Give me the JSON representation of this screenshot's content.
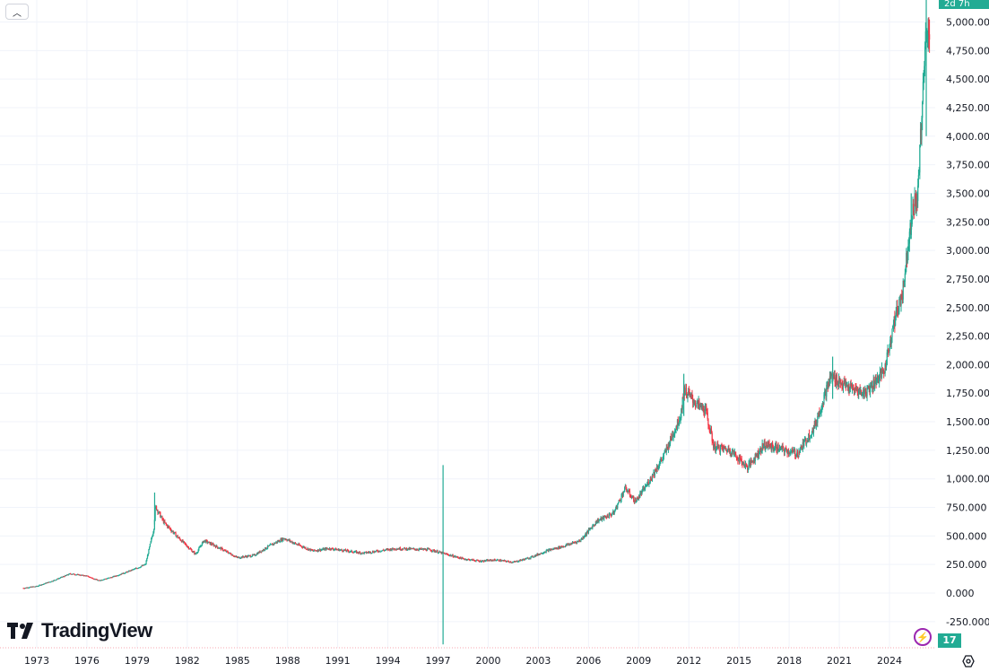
{
  "ui": {
    "countdown_label": "2d 7h",
    "bottom_badge_label": "17",
    "logo_text": "TradingView",
    "collapse_icon": "chevron-up-icon",
    "bolt_icon": "lightning-icon",
    "settings_icon": "gear-icon"
  },
  "colors": {
    "up": "#22ab94",
    "down": "#f23645",
    "grid": "#f0f3fa",
    "text": "#131722"
  },
  "chart_data": {
    "type": "candlestick",
    "title": "",
    "xlabel": "",
    "ylabel": "",
    "ylim": [
      -250000,
      5000000
    ],
    "xlim": [
      1972.2,
      2026.4
    ],
    "y_ticks": [
      {
        "value": 5000000,
        "label": "5,000.000"
      },
      {
        "value": 4750000,
        "label": "4,750.000"
      },
      {
        "value": 4500000,
        "label": "4,500.000"
      },
      {
        "value": 4250000,
        "label": "4,250.000"
      },
      {
        "value": 4000000,
        "label": "4,000.000"
      },
      {
        "value": 3750000,
        "label": "3,750.000"
      },
      {
        "value": 3500000,
        "label": "3,500.000"
      },
      {
        "value": 3250000,
        "label": "3,250.000"
      },
      {
        "value": 3000000,
        "label": "3,000.000"
      },
      {
        "value": 2750000,
        "label": "2,750.000"
      },
      {
        "value": 2500000,
        "label": "2,500.000"
      },
      {
        "value": 2250000,
        "label": "2,250.000"
      },
      {
        "value": 2000000,
        "label": "2,000.000"
      },
      {
        "value": 1750000,
        "label": "1,750.000"
      },
      {
        "value": 1500000,
        "label": "1,500.000"
      },
      {
        "value": 1250000,
        "label": "1,250.000"
      },
      {
        "value": 1000000,
        "label": "1,000.000"
      },
      {
        "value": 750000,
        "label": "750.000"
      },
      {
        "value": 500000,
        "label": "500.000"
      },
      {
        "value": 250000,
        "label": "250.000"
      },
      {
        "value": 0,
        "label": "0.000"
      },
      {
        "value": -250000,
        "label": "-250.000"
      }
    ],
    "x_ticks": [
      {
        "value": 1973,
        "label": "1973"
      },
      {
        "value": 1976,
        "label": "1976"
      },
      {
        "value": 1979,
        "label": "1979"
      },
      {
        "value": 1982,
        "label": "1982"
      },
      {
        "value": 1985,
        "label": "1985"
      },
      {
        "value": 1988,
        "label": "1988"
      },
      {
        "value": 1991,
        "label": "1991"
      },
      {
        "value": 1994,
        "label": "1994"
      },
      {
        "value": 1997,
        "label": "1997"
      },
      {
        "value": 2000,
        "label": "2000"
      },
      {
        "value": 2003,
        "label": "2003"
      },
      {
        "value": 2006,
        "label": "2006"
      },
      {
        "value": 2009,
        "label": "2009"
      },
      {
        "value": 2012,
        "label": "2012"
      },
      {
        "value": 2015,
        "label": "2015"
      },
      {
        "value": 2018,
        "label": "2018"
      },
      {
        "value": 2021,
        "label": "2021"
      },
      {
        "value": 2024,
        "label": "2024"
      }
    ],
    "grid": true,
    "anchors": [
      [
        1972.0,
        40000
      ],
      [
        1973.0,
        60000
      ],
      [
        1974.0,
        110000
      ],
      [
        1975.0,
        170000
      ],
      [
        1976.0,
        150000
      ],
      [
        1976.7,
        110000
      ],
      [
        1977.5,
        140000
      ],
      [
        1978.5,
        190000
      ],
      [
        1979.5,
        250000
      ],
      [
        1980.0,
        560000
      ],
      [
        1980.1,
        760000
      ],
      [
        1980.6,
        620000
      ],
      [
        1981.5,
        480000
      ],
      [
        1982.5,
        340000
      ],
      [
        1983.0,
        460000
      ],
      [
        1984.0,
        390000
      ],
      [
        1985.0,
        310000
      ],
      [
        1986.0,
        330000
      ],
      [
        1987.0,
        420000
      ],
      [
        1987.8,
        480000
      ],
      [
        1988.5,
        430000
      ],
      [
        1989.5,
        370000
      ],
      [
        1990.5,
        390000
      ],
      [
        1991.5,
        370000
      ],
      [
        1992.5,
        350000
      ],
      [
        1993.5,
        370000
      ],
      [
        1994.5,
        390000
      ],
      [
        1995.5,
        385000
      ],
      [
        1996.5,
        380000
      ],
      [
        1997.5,
        340000
      ],
      [
        1998.5,
        300000
      ],
      [
        1999.5,
        280000
      ],
      [
        2000.5,
        290000
      ],
      [
        2001.5,
        270000
      ],
      [
        2002.5,
        310000
      ],
      [
        2003.5,
        370000
      ],
      [
        2004.5,
        410000
      ],
      [
        2005.5,
        460000
      ],
      [
        2006.5,
        630000
      ],
      [
        2007.5,
        700000
      ],
      [
        2008.2,
        920000
      ],
      [
        2008.8,
        800000
      ],
      [
        2009.5,
        950000
      ],
      [
        2010.5,
        1200000
      ],
      [
        2011.5,
        1550000
      ],
      [
        2011.7,
        1780000
      ],
      [
        2012.5,
        1650000
      ],
      [
        2013.0,
        1600000
      ],
      [
        2013.5,
        1280000
      ],
      [
        2014.5,
        1250000
      ],
      [
        2015.5,
        1100000
      ],
      [
        2016.5,
        1300000
      ],
      [
        2017.5,
        1260000
      ],
      [
        2018.5,
        1220000
      ],
      [
        2019.5,
        1450000
      ],
      [
        2020.5,
        1900000
      ],
      [
        2021.5,
        1800000
      ],
      [
        2022.5,
        1750000
      ],
      [
        2023.0,
        1830000
      ],
      [
        2023.7,
        1950000
      ],
      [
        2024.2,
        2330000
      ],
      [
        2024.8,
        2650000
      ],
      [
        2025.3,
        3300000
      ],
      [
        2025.7,
        3500000
      ],
      [
        2026.0,
        4400000
      ],
      [
        2026.2,
        4950000
      ]
    ],
    "spikes": [
      {
        "year": 1980.05,
        "high": 880000,
        "low": 600000
      },
      {
        "year": 1997.3,
        "high": 1120000,
        "low": -450000
      },
      {
        "year": 2011.7,
        "high": 1920000,
        "low": 1550000
      },
      {
        "year": 2020.6,
        "high": 2070000,
        "low": 1700000
      },
      {
        "year": 2025.3,
        "high": 3500000,
        "low": 3100000
      },
      {
        "year": 2026.2,
        "high": 5200000,
        "low": 4000000
      }
    ]
  }
}
